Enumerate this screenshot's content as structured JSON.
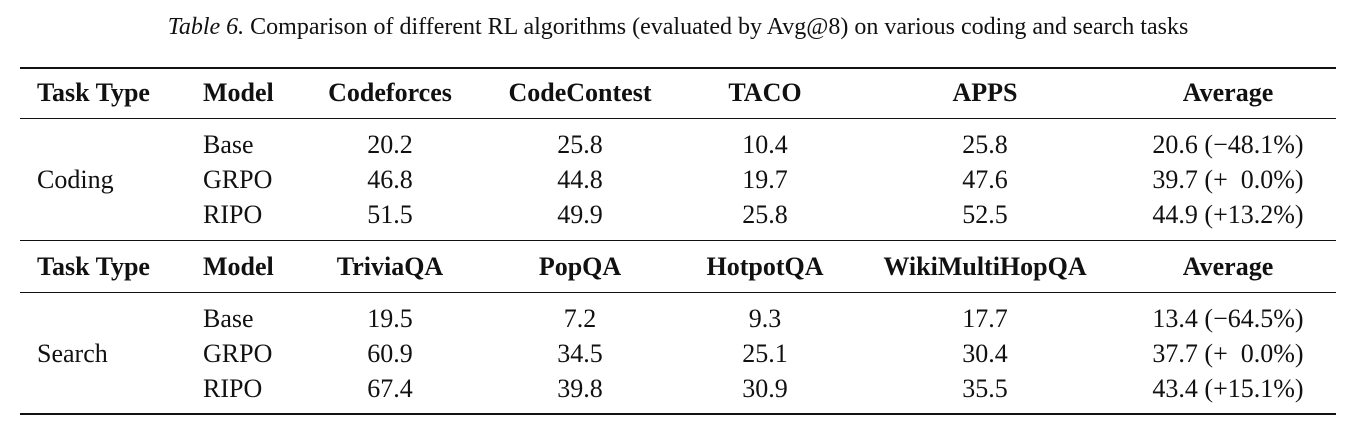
{
  "caption": {
    "label": "Table 6.",
    "text": "Comparison of different RL algorithms (evaluated by Avg@8) on various coding and search tasks"
  },
  "sections": [
    {
      "header": [
        "Task Type",
        "Model",
        "Codeforces",
        "CodeContest",
        "TACO",
        "APPS",
        "Average"
      ],
      "group": "Coding",
      "rows": [
        [
          "Base",
          "20.2",
          "25.8",
          "10.4",
          "25.8",
          "20.6 (−48.1%)"
        ],
        [
          "GRPO",
          "46.8",
          "44.8",
          "19.7",
          "47.6",
          "39.7 (+  0.0%)"
        ],
        [
          "RIPO",
          "51.5",
          "49.9",
          "25.8",
          "52.5",
          "44.9 (+13.2%)"
        ]
      ]
    },
    {
      "header": [
        "Task Type",
        "Model",
        "TriviaQA",
        "PopQA",
        "HotpotQA",
        "WikiMultiHopQA",
        "Average"
      ],
      "group": "Search",
      "rows": [
        [
          "Base",
          "19.5",
          "7.2",
          "9.3",
          "17.7",
          "13.4 (−64.5%)"
        ],
        [
          "GRPO",
          "60.9",
          "34.5",
          "25.1",
          "30.4",
          "37.7 (+  0.0%)"
        ],
        [
          "RIPO",
          "67.4",
          "39.8",
          "30.9",
          "35.5",
          "43.4 (+15.1%)"
        ]
      ]
    }
  ]
}
